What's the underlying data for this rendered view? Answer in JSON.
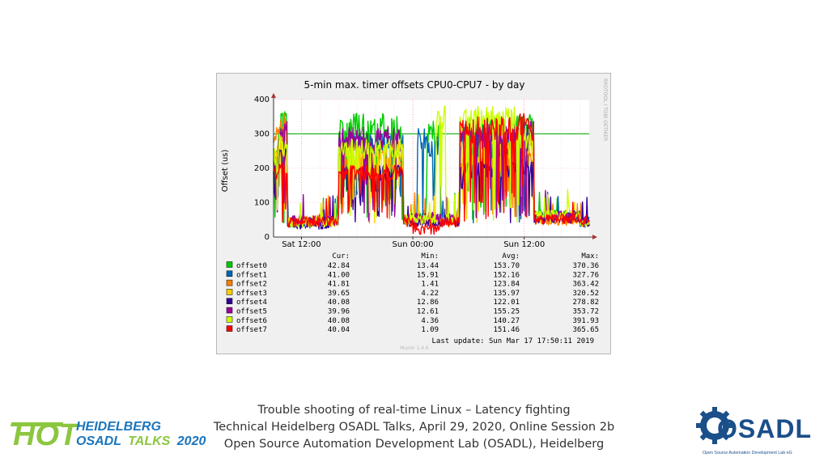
{
  "chart_data": {
    "type": "line",
    "title": "5-min max. timer offsets CPU0-CPU7 - by day",
    "ylabel": "Offset (us)",
    "xlabel": "",
    "ylim": [
      0,
      400
    ],
    "yticks": [
      0,
      100,
      200,
      300,
      400
    ],
    "xticks": [
      "Sat 12:00",
      "Sun 00:00",
      "Sun 12:00"
    ],
    "x_range_hours": [
      -3,
      31
    ],
    "grid": true,
    "threshold_line": 300,
    "side_label": "RRDTOOL / TOBI OETIKER",
    "legend_headers": {
      "cur": "Cur:",
      "min": "Min:",
      "avg": "Avg:",
      "max": "Max:"
    },
    "series": [
      {
        "name": "offset0",
        "color": "#00cc00",
        "cur": "42.84",
        "min": "13.44",
        "avg": "153.70",
        "max": "370.36",
        "segments": [
          [
            -3,
            0,
            260
          ],
          [
            -2.5,
            0,
            370
          ],
          [
            -1.5,
            0,
            40
          ],
          [
            3,
            0,
            45
          ],
          [
            4,
            0,
            360
          ],
          [
            11,
            0,
            50
          ],
          [
            12,
            0,
            60
          ],
          [
            13.5,
            0,
            340
          ],
          [
            15,
            0,
            50
          ],
          [
            17,
            0,
            350
          ],
          [
            23,
            0,
            360
          ],
          [
            25,
            0,
            60
          ],
          [
            30,
            0,
            45
          ]
        ]
      },
      {
        "name": "offset1",
        "color": "#0066b3",
        "cur": "41.00",
        "min": "15.91",
        "avg": "152.16",
        "max": "327.76",
        "segments": [
          [
            -3,
            0,
            240
          ],
          [
            -2.5,
            0,
            310
          ],
          [
            -1.5,
            0,
            40
          ],
          [
            3,
            0,
            40
          ],
          [
            4,
            0,
            300
          ],
          [
            11,
            0,
            45
          ],
          [
            12.5,
            0,
            320
          ],
          [
            13.5,
            0,
            300
          ],
          [
            15,
            0,
            50
          ],
          [
            17,
            0,
            320
          ],
          [
            23,
            0,
            330
          ],
          [
            25,
            0,
            55
          ],
          [
            30,
            0,
            40
          ]
        ]
      },
      {
        "name": "offset2",
        "color": "#ff8000",
        "cur": "41.81",
        "min": "1.41",
        "avg": "123.84",
        "max": "363.42",
        "segments": [
          [
            -3,
            0,
            320
          ],
          [
            -2.5,
            0,
            360
          ],
          [
            -1.5,
            0,
            45
          ],
          [
            3,
            0,
            40
          ],
          [
            4,
            0,
            250
          ],
          [
            11,
            0,
            50
          ],
          [
            15,
            0,
            40
          ],
          [
            17,
            0,
            240
          ],
          [
            23,
            0,
            260
          ],
          [
            25,
            0,
            45
          ],
          [
            30,
            0,
            40
          ]
        ]
      },
      {
        "name": "offset3",
        "color": "#ffcc00",
        "cur": "39.65",
        "min": "4.22",
        "avg": "135.97",
        "max": "320.52",
        "segments": [
          [
            -3,
            0,
            280
          ],
          [
            -2.5,
            0,
            320
          ],
          [
            -1.5,
            0,
            40
          ],
          [
            3,
            0,
            40
          ],
          [
            4,
            0,
            280
          ],
          [
            11,
            0,
            45
          ],
          [
            15,
            0,
            45
          ],
          [
            17,
            0,
            290
          ],
          [
            23,
            0,
            300
          ],
          [
            25,
            0,
            50
          ],
          [
            30,
            0,
            40
          ]
        ]
      },
      {
        "name": "offset4",
        "color": "#330099",
        "cur": "40.08",
        "min": "12.86",
        "avg": "122.01",
        "max": "278.82",
        "segments": [
          [
            -3,
            0,
            200
          ],
          [
            -2.5,
            0,
            270
          ],
          [
            -1.5,
            0,
            35
          ],
          [
            3,
            0,
            40
          ],
          [
            4,
            0,
            210
          ],
          [
            11,
            0,
            40
          ],
          [
            15,
            0,
            40
          ],
          [
            17,
            0,
            220
          ],
          [
            23,
            0,
            230
          ],
          [
            25,
            0,
            50
          ],
          [
            30,
            0,
            40
          ]
        ]
      },
      {
        "name": "offset5",
        "color": "#990099",
        "cur": "39.96",
        "min": "12.61",
        "avg": "155.25",
        "max": "353.72",
        "segments": [
          [
            -3,
            0,
            250
          ],
          [
            -2.5,
            0,
            340
          ],
          [
            -1.5,
            0,
            45
          ],
          [
            3,
            0,
            45
          ],
          [
            4,
            0,
            320
          ],
          [
            11,
            0,
            55
          ],
          [
            15,
            0,
            50
          ],
          [
            17,
            0,
            330
          ],
          [
            23,
            0,
            340
          ],
          [
            25,
            0,
            60
          ],
          [
            30,
            0,
            45
          ]
        ]
      },
      {
        "name": "offset6",
        "color": "#ccff00",
        "cur": "40.08",
        "min": "4.36",
        "avg": "140.27",
        "max": "391.93",
        "segments": [
          [
            -3,
            0,
            260
          ],
          [
            -2.5,
            0,
            300
          ],
          [
            -1.5,
            0,
            40
          ],
          [
            3,
            0,
            40
          ],
          [
            4,
            0,
            290
          ],
          [
            11,
            0,
            45
          ],
          [
            14.5,
            0,
            390
          ],
          [
            15.5,
            0,
            50
          ],
          [
            17,
            0,
            380
          ],
          [
            23,
            0,
            320
          ],
          [
            25,
            0,
            60
          ],
          [
            30,
            0,
            40
          ]
        ]
      },
      {
        "name": "offset7",
        "color": "#ff0000",
        "cur": "40.04",
        "min": "1.09",
        "avg": "151.46",
        "max": "365.65",
        "segments": [
          [
            -3,
            0,
            200
          ],
          [
            -2.5,
            0,
            230
          ],
          [
            -1.5,
            0,
            40
          ],
          [
            3,
            0,
            40
          ],
          [
            4,
            0,
            210
          ],
          [
            11,
            0,
            40
          ],
          [
            12,
            0,
            20
          ],
          [
            15,
            0,
            40
          ],
          [
            17,
            0,
            350
          ],
          [
            23,
            0,
            360
          ],
          [
            25,
            0,
            50
          ],
          [
            30,
            0,
            40
          ]
        ]
      }
    ],
    "last_update": "Last update:  Sun Mar 17 17:50:11 2019",
    "footer": "Munin 1.4.6"
  },
  "caption": {
    "line1": "Trouble shooting of real-time Linux – Latency fighting",
    "line2": "Technical Heidelberg OSADL Talks, April 29, 2020, Online Session 2b",
    "line3": "Open Source Automation Development Lab (OSADL), Heidelberg"
  },
  "hot_logo": {
    "hot": "HOT",
    "heidelberg": "HEIDELBERG",
    "osadl": "OSADL",
    "talks": "TALKS",
    "year": "2020"
  },
  "osadl_logo": {
    "name": "OSADL",
    "subtitle": "Open Source Automation Development Lab eG"
  },
  "colors": {
    "hot_green": "#8cc63f",
    "hot_blue": "#1b75bc",
    "osadl_blue": "#1b4f8a",
    "grid_green": "#00aa00"
  }
}
